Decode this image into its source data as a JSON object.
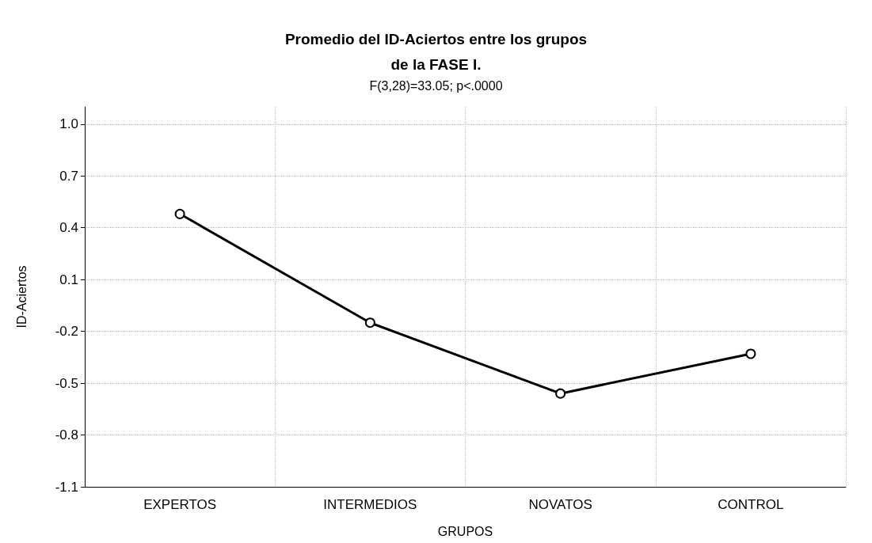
{
  "chart_data": {
    "type": "line",
    "title": "Promedio del ID-Aciertos entre los grupos\nde la FASE I.",
    "subtitle": "F(3,28)=33.05; p<.0000",
    "xlabel": "GRUPOS",
    "ylabel": "ID-Aciertos",
    "categories": [
      "EXPERTOS",
      "INTERMEDIOS",
      "NOVATOS",
      "CONTROL"
    ],
    "series": [
      {
        "color": "#000000",
        "values": [
          0.48,
          -0.15,
          -0.56,
          -0.33
        ]
      }
    ],
    "ylim": [
      -1.1,
      1.1
    ],
    "yticks": [
      -1.1,
      -0.8,
      -0.5,
      -0.2,
      0.1,
      0.4,
      0.7,
      {
        "value": 1,
        "label": "1.0"
      }
    ],
    "grid": true,
    "marker": "circle",
    "line_style": "solid"
  }
}
